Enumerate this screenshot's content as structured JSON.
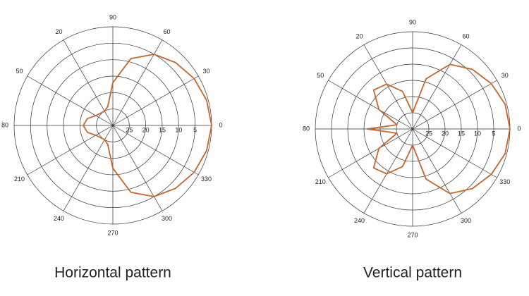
{
  "chart_data": [
    {
      "type": "polar",
      "title": "Horizontal pattern",
      "color": "#c9652b",
      "theta": [
        0,
        15,
        30,
        45,
        60,
        75,
        90,
        105,
        120,
        150,
        165,
        180,
        195,
        210,
        240,
        255,
        270,
        285,
        300,
        315,
        330,
        345
      ],
      "values": [
        0,
        0.5,
        1.5,
        3,
        5,
        9,
        17,
        24,
        25,
        24,
        22,
        21,
        22,
        24,
        25,
        24,
        17,
        9,
        5,
        3,
        1.5,
        0.5
      ],
      "rlim": [
        30,
        0
      ],
      "rticks": [
        25,
        20,
        15,
        10,
        5
      ],
      "thetaticks": [
        0,
        30,
        60,
        90,
        {
          "value": 120,
          "label": "20"
        },
        {
          "value": 150,
          "label": "50"
        },
        {
          "value": 180,
          "label": "80"
        },
        210,
        240,
        270,
        300,
        330
      ],
      "grid": true
    },
    {
      "type": "polar",
      "title": "Vertical pattern",
      "color": "#c9652b",
      "theta": [
        0,
        15,
        30,
        45,
        60,
        75,
        90,
        105,
        120,
        135,
        150,
        165,
        180,
        195,
        210,
        225,
        240,
        255,
        270,
        285,
        300,
        315,
        330,
        345
      ],
      "values": [
        0,
        0.5,
        2,
        4,
        7,
        14,
        25,
        18,
        14,
        13,
        18,
        25,
        16,
        25,
        18,
        13,
        14,
        18,
        25,
        14,
        7,
        4,
        2,
        0.5
      ],
      "rlim": [
        30,
        0
      ],
      "rticks": [
        25,
        20,
        15,
        10,
        5
      ],
      "thetaticks": [
        0,
        30,
        60,
        90,
        {
          "value": 120,
          "label": "20"
        },
        {
          "value": 150,
          "label": "50"
        },
        {
          "value": 180,
          "label": "80"
        },
        210,
        240,
        270,
        300,
        330
      ],
      "grid": true
    }
  ]
}
